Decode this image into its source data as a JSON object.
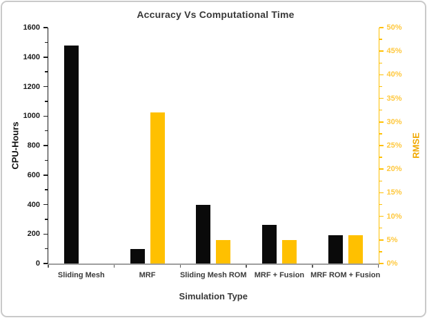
{
  "window": {
    "background_color": "#ffffff",
    "card_border_color": "#c9c9c9"
  },
  "chart_data": {
    "type": "bar",
    "title": "Accuracy Vs Computational Time",
    "title_color": "#383838",
    "xlabel": "Simulation Type",
    "grid": false,
    "legend": "none",
    "categories": [
      "Sliding Mesh",
      "MRF",
      "Sliding Mesh ROM",
      "MRF + Fusion",
      "MRF ROM + Fusion"
    ],
    "series": [
      {
        "name": "CPU-Hours",
        "axis": "left",
        "color": "#0a0a0a",
        "values": [
          1480,
          100,
          400,
          260,
          190
        ]
      },
      {
        "name": "RMSE",
        "axis": "right",
        "color": "#ffc000",
        "values": [
          0,
          32,
          5,
          5,
          6
        ],
        "unit": "%"
      }
    ],
    "left_axis": {
      "label": "CPU-Hours",
      "min": 0,
      "max": 1600,
      "major_step": 200,
      "minor_step": 100,
      "tick_labels": [
        "0",
        "200",
        "400",
        "600",
        "800",
        "1000",
        "1200",
        "1400",
        "1600"
      ],
      "axis_color": "#1a1a1a",
      "tick_label_color": "#1a1a1a"
    },
    "right_axis": {
      "label": "RMSE",
      "min": 0,
      "max": 50,
      "major_step": 5,
      "minor_step": 2.5,
      "tick_labels": [
        "0%",
        "5%",
        "10%",
        "15%",
        "20%",
        "25%",
        "30%",
        "35%",
        "40%",
        "45%",
        "50%"
      ],
      "axis_color": "#ffc000",
      "tick_label_color": "#ffc83d",
      "title_color": "#f0a800"
    },
    "baseline_color": "#9e9e9e",
    "boundary_tick_color": "#595959"
  }
}
